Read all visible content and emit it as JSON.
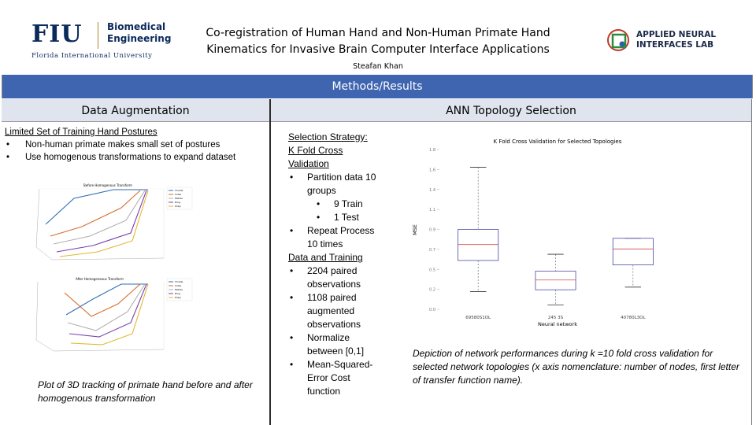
{
  "header": {
    "fiu_letters": "FIU",
    "fiu_dept_line1": "Biomedical",
    "fiu_dept_line2": "Engineering",
    "fiu_university": "Florida International University",
    "title_line1": "Co-registration of Human Hand and Non-Human Primate Hand",
    "title_line2": "Kinematics for Invasive Brain Computer Interface Applications",
    "author": "Steafan Khan",
    "lab_line1": "APPLIED NEURAL",
    "lab_line2": "INTERFACES LAB"
  },
  "banner": {
    "label": "Methods/Results"
  },
  "left": {
    "heading": "Data Augmentation",
    "subheading": "Limited Set of Training Hand Postures",
    "bullets": [
      "Non-human primate makes small set of postures",
      "Use homogenous transformations to expand dataset"
    ],
    "plot1_title": "Before Homogenous Transform",
    "plot2_title": "After Homogeneous Transform",
    "legend": [
      "Thumb",
      "Index",
      "Middle",
      "Ring",
      "Pinky"
    ],
    "caption": "Plot of 3D tracking of primate hand before and after homogenous transformation"
  },
  "middle": {
    "heading": "ANN Topology Selection",
    "strategy_label": "Selection Strategy:",
    "kfold_label": "K Fold Cross Validation",
    "partition": "Partition data 10 groups",
    "train": "9 Train",
    "test": "1 Test",
    "repeat": "Repeat Process 10 times",
    "data_label": "Data and Training",
    "obs1": "2204 paired observations",
    "obs2": "1108 paired augmented observations",
    "normalize": "Normalize between [0,1]",
    "mse": "Mean-Squared-Error Cost function"
  },
  "right": {
    "caption": "Depiction of network performances during k =10 fold cross validation for selected network topologies (x axis nomenclature: number of nodes, first letter of transfer function name)."
  },
  "chart_data": {
    "type": "box",
    "title": "K Fold Cross Validation for Selected Topologies",
    "xlabel": "Neural network",
    "ylabel": "MSE",
    "categories": [
      "69580S1OL",
      "245 3S",
      "40780L3OL"
    ],
    "boxes": [
      {
        "name": "69580S1OL",
        "whisker_low": 0.2,
        "q1": 0.55,
        "median": 0.73,
        "q3": 0.9,
        "whisker_high": 1.6
      },
      {
        "name": "245 3S",
        "whisker_low": 0.05,
        "q1": 0.22,
        "median": 0.33,
        "q3": 0.43,
        "whisker_high": 0.62
      },
      {
        "name": "40780L3OL",
        "whisker_low": 0.25,
        "q1": 0.5,
        "median": 0.68,
        "q3": 0.8,
        "whisker_high": 0.8
      }
    ],
    "ylim": [
      0,
      1.8
    ],
    "colors": {
      "box": "#4a4aa8",
      "median": "#d24a4a"
    },
    "grid": false
  }
}
